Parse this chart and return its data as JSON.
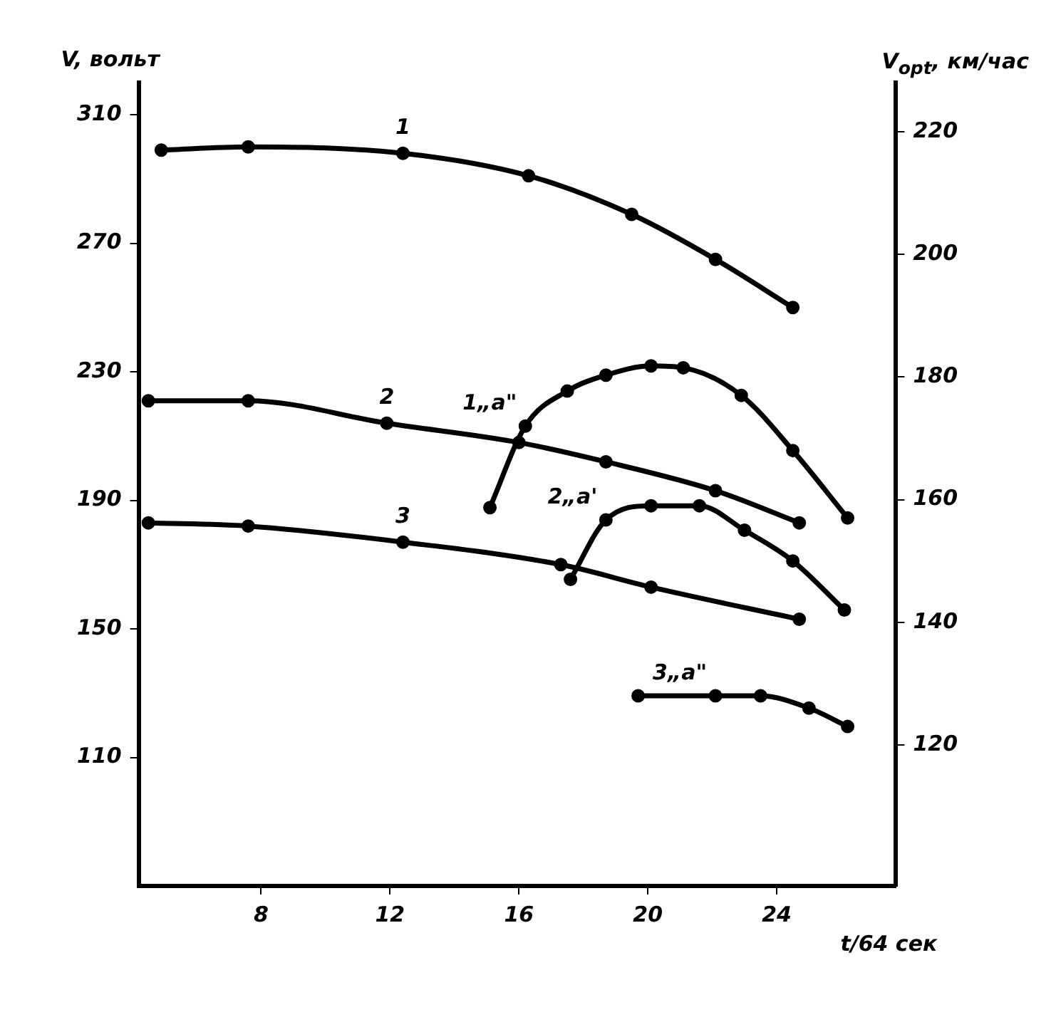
{
  "chart_data": {
    "type": "line",
    "xlabel": "t/64 сек",
    "ylabel": "V, вольт",
    "y2label": "V$_{opt}$, км/час",
    "xlim": [
      4.2,
      27.7
    ],
    "xticks": [
      8,
      12,
      16,
      20,
      24
    ],
    "ylim": [
      70,
      320
    ],
    "yticks": [
      110,
      150,
      190,
      230,
      270,
      310
    ],
    "y2lim": [
      97,
      228
    ],
    "y2ticks": [
      120,
      140,
      160,
      180,
      200,
      220
    ],
    "grid": false,
    "legend": false,
    "marker": "circle",
    "line_style": "solid",
    "series": [
      {
        "name": "1",
        "color": "#000000",
        "x": [
          4.9,
          7.6,
          12.4,
          16.3,
          19.5,
          22.1,
          24.5
        ],
        "values": [
          299,
          300,
          298,
          291,
          279,
          265,
          250
        ]
      },
      {
        "name": "2",
        "color": "#000000",
        "x": [
          4.5,
          7.6,
          11.9,
          16,
          18.7,
          22.1,
          24.7
        ],
        "values": [
          221,
          221,
          214,
          208,
          202,
          193,
          183
        ]
      },
      {
        "name": "3",
        "color": "#000000",
        "x": [
          4.5,
          7.6,
          12.4,
          17.3,
          20.1,
          24.7
        ],
        "values": [
          183,
          182,
          177,
          170,
          163,
          153
        ]
      },
      {
        "name": "1„a\"",
        "color": "#000000",
        "axis": "y2",
        "x": [
          15.1,
          16.2,
          17.5,
          18.7,
          20.1,
          21.1,
          22.9,
          24.5,
          26.2
        ],
        "values": [
          158.7,
          172,
          177.7,
          180.3,
          181.8,
          181.5,
          177,
          168,
          157
        ]
      },
      {
        "name": "2„a'",
        "color": "#000000",
        "axis": "y2",
        "x": [
          17.6,
          18.7,
          20.1,
          21.6,
          23,
          24.5,
          26.1
        ],
        "values": [
          147,
          156.7,
          159,
          159,
          155,
          150,
          142
        ]
      },
      {
        "name": "3„a\"",
        "color": "#000000",
        "axis": "y2",
        "x": [
          19.7,
          22.1,
          23.5,
          25,
          26.2
        ],
        "values": [
          128,
          128,
          128,
          126,
          123
        ]
      }
    ]
  }
}
